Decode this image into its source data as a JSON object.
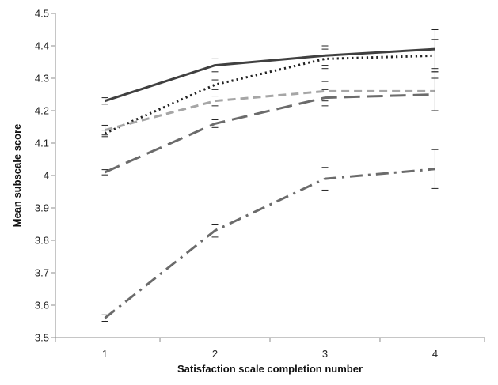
{
  "chart_data": {
    "type": "line",
    "title": "",
    "xlabel": "Satisfaction scale completion number",
    "ylabel": "Mean subscale score",
    "x": [
      1,
      2,
      3,
      4
    ],
    "xlim": [
      0.55,
      4.45
    ],
    "ylim": [
      3.5,
      4.5
    ],
    "yticks": [
      3.5,
      3.6,
      3.7,
      3.8,
      3.9,
      4,
      4.1,
      4.2,
      4.3,
      4.4,
      4.5
    ],
    "xticks": [
      1,
      2,
      3,
      4
    ],
    "grid": false,
    "legend": "none",
    "series": [
      {
        "values": [
          4.23,
          4.34,
          4.37,
          4.39
        ],
        "error": [
          0.01,
          0.02,
          0.03,
          0.06
        ],
        "color": "#404040",
        "style": "solid"
      },
      {
        "values": [
          4.13,
          4.28,
          4.36,
          4.37
        ],
        "error": [
          0.01,
          0.015,
          0.03,
          0.05
        ],
        "color": "#222222",
        "style": "dotted"
      },
      {
        "values": [
          4.14,
          4.23,
          4.26,
          4.26
        ],
        "error": [
          0.015,
          0.015,
          0.03,
          0.06
        ],
        "color": "#a6a6a6",
        "style": "dashed"
      },
      {
        "values": [
          4.01,
          4.16,
          4.24,
          4.25
        ],
        "error": [
          0.008,
          0.012,
          0.025,
          0.05
        ],
        "color": "#6b6b6b",
        "style": "longdash"
      },
      {
        "values": [
          3.56,
          3.83,
          3.99,
          4.02
        ],
        "error": [
          0.01,
          0.02,
          0.035,
          0.06
        ],
        "color": "#6b6b6b",
        "style": "dashdot"
      }
    ]
  }
}
